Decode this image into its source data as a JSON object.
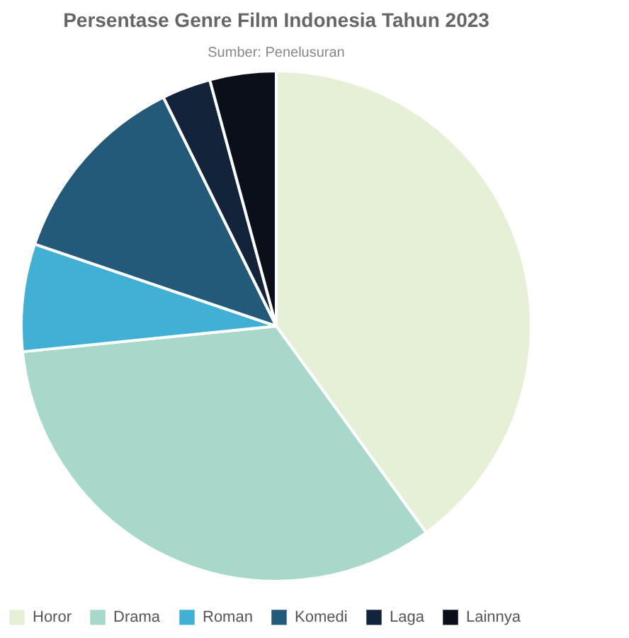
{
  "chart_data": {
    "type": "pie",
    "title": "Persentase Genre Film Indonesia Tahun 2023",
    "subtitle": "Sumber: Penelusuran",
    "categories": [
      "Horor",
      "Drama",
      "Roman",
      "Komedi",
      "Laga",
      "Lainnya"
    ],
    "values": [
      40,
      33.4,
      6.8,
      12.5,
      3.1,
      4.2
    ],
    "colors": [
      "#e5f0d6",
      "#a8d8cc",
      "#41b0d4",
      "#235a7a",
      "#13233a",
      "#0a0f1a"
    ],
    "legend": "bottom"
  }
}
